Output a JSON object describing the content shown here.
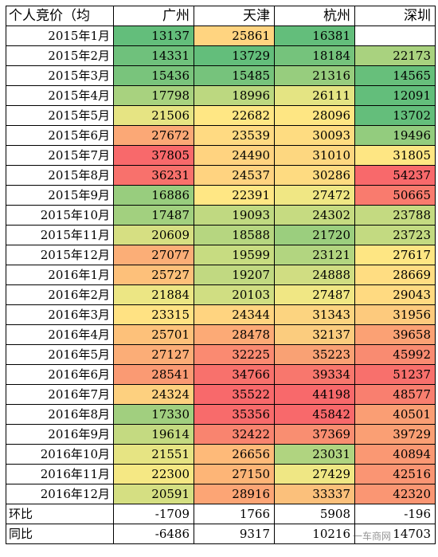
{
  "headers": [
    "个人竞价（均",
    "广州",
    "天津",
    "杭州",
    "深圳"
  ],
  "rows": [
    {
      "label": "2015年1月",
      "values": [
        "13137",
        "25861",
        "16381",
        ""
      ],
      "colors": [
        "#63be7b",
        "#ffd480",
        "#63be7b",
        "#ffffff"
      ]
    },
    {
      "label": "2015年2月",
      "values": [
        "14331",
        "13729",
        "18184",
        "22173"
      ],
      "colors": [
        "#6fc17c",
        "#63be7b",
        "#75c37c",
        "#a9d27f"
      ]
    },
    {
      "label": "2015年3月",
      "values": [
        "15436",
        "15485",
        "21316",
        "14565"
      ],
      "colors": [
        "#79c47c",
        "#76c37c",
        "#97cd7e",
        "#67bf7b"
      ]
    },
    {
      "label": "2015年4月",
      "values": [
        "17798",
        "18996",
        "26111",
        "12091"
      ],
      "colors": [
        "#a8d27f",
        "#bcd880",
        "#e4e483",
        "#63be7b"
      ]
    },
    {
      "label": "2015年5月",
      "values": [
        "21506",
        "22682",
        "28096",
        "13702"
      ],
      "colors": [
        "#e6e483",
        "#ffe784",
        "#fee683",
        "#64be7b"
      ]
    },
    {
      "label": "2015年6月",
      "values": [
        "27672",
        "23539",
        "30093",
        "19496"
      ],
      "colors": [
        "#fba876",
        "#ffda82",
        "#fedc81",
        "#93cc7e"
      ]
    },
    {
      "label": "2015年7月",
      "values": [
        "37805",
        "24490",
        "31010",
        "31805"
      ],
      "colors": [
        "#f8696b",
        "#ffd380",
        "#fdd780",
        "#fee683"
      ]
    },
    {
      "label": "2015年8月",
      "values": [
        "36231",
        "24537",
        "30286",
        "54237"
      ],
      "colors": [
        "#f8716c",
        "#ffd380",
        "#fedb81",
        "#f8696b"
      ]
    },
    {
      "label": "2015年9月",
      "values": [
        "16886",
        "22391",
        "27472",
        "50665"
      ],
      "colors": [
        "#98cd7e",
        "#ffe784",
        "#f0e784",
        "#f97b6e"
      ]
    },
    {
      "label": "2015年10月",
      "values": [
        "17487",
        "19093",
        "24302",
        "23788"
      ],
      "colors": [
        "#a2d07f",
        "#c0d981",
        "#c6db81",
        "#c4da81"
      ]
    },
    {
      "label": "2015年11月",
      "values": [
        "20609",
        "18588",
        "21720",
        "23723"
      ],
      "colors": [
        "#d6df82",
        "#b6d680",
        "#9bce7e",
        "#c3da81"
      ]
    },
    {
      "label": "2015年12月",
      "values": [
        "27077",
        "19599",
        "23121",
        "27617"
      ],
      "colors": [
        "#fbae77",
        "#c7dc81",
        "#b2d580",
        "#fee683"
      ]
    },
    {
      "label": "2016年1月",
      "values": [
        "25727",
        "19207",
        "24888",
        "28669"
      ],
      "colors": [
        "#fdc07a",
        "#c1d981",
        "#d0dd82",
        "#ffdd82"
      ]
    },
    {
      "label": "2016年2月",
      "values": [
        "21884",
        "20103",
        "27487",
        "29043"
      ],
      "colors": [
        "#ece684",
        "#d0de82",
        "#f0e784",
        "#ffda81"
      ]
    },
    {
      "label": "2016年3月",
      "values": [
        "23315",
        "24344",
        "31343",
        "31956"
      ],
      "colors": [
        "#ffe283",
        "#ffd480",
        "#fcd480",
        "#fdca7d"
      ]
    },
    {
      "label": "2016年4月",
      "values": [
        "25701",
        "28478",
        "32137",
        "39658"
      ],
      "colors": [
        "#fdc17a",
        "#fcaa76",
        "#fbcc7e",
        "#fba174"
      ]
    },
    {
      "label": "2016年5月",
      "values": [
        "27127",
        "32225",
        "35223",
        "45992"
      ],
      "colors": [
        "#fbad77",
        "#fa8a71",
        "#f9a174",
        "#f98b71"
      ]
    },
    {
      "label": "2016年6月",
      "values": [
        "28541",
        "34766",
        "39334",
        "51237"
      ],
      "colors": [
        "#fa9a73",
        "#f8716c",
        "#f8776d",
        "#f8706c"
      ]
    },
    {
      "label": "2016年7月",
      "values": [
        "24324",
        "35522",
        "44198",
        "48577"
      ],
      "colors": [
        "#fdd07f",
        "#f8696b",
        "#f8696b",
        "#f97f6f"
      ]
    },
    {
      "label": "2016年8月",
      "values": [
        "17330",
        "35356",
        "45842",
        "40501"
      ],
      "colors": [
        "#a1cf7f",
        "#f86b6b",
        "#f8696b",
        "#fa9e74"
      ]
    },
    {
      "label": "2016年9月",
      "values": [
        "19614",
        "32422",
        "37369",
        "39729"
      ],
      "colors": [
        "#c4da81",
        "#f9846f",
        "#f98e71",
        "#fa9f74"
      ]
    },
    {
      "label": "2016年10月",
      "values": [
        "21551",
        "26656",
        "23031",
        "40894"
      ],
      "colors": [
        "#e6e483",
        "#feba79",
        "#b0d480",
        "#fa9873"
      ]
    },
    {
      "label": "2016年11月",
      "values": [
        "22300",
        "27150",
        "27429",
        "42516"
      ],
      "colors": [
        "#f5e884",
        "#fdb577",
        "#efe784",
        "#fa9573"
      ]
    },
    {
      "label": "2016年12月",
      "values": [
        "20591",
        "28916",
        "33337",
        "42320"
      ],
      "colors": [
        "#d5df82",
        "#fca575",
        "#fbc07b",
        "#fa9673"
      ]
    }
  ],
  "summary": [
    {
      "label": "环比",
      "values": [
        "-1709",
        "1766",
        "5908",
        "-196"
      ]
    },
    {
      "label": "同比",
      "values": [
        "-6486",
        "9317",
        "10216",
        "14703"
      ]
    }
  ],
  "watermark": "一车商网"
}
